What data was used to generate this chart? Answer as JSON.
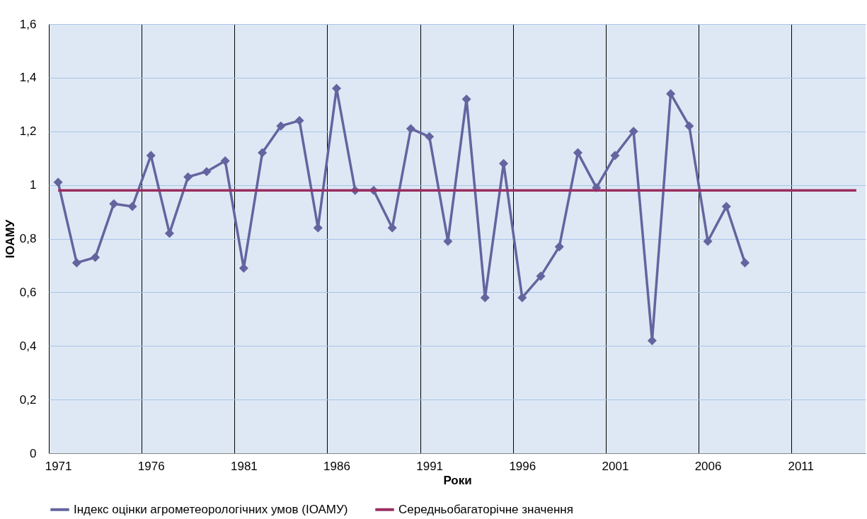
{
  "chart_data": {
    "type": "line",
    "xlabel": "Роки",
    "ylabel": "ІОАМУ",
    "categories": [
      "1971",
      null,
      null,
      null,
      null,
      "1976",
      null,
      null,
      null,
      null,
      "1981",
      null,
      null,
      null,
      null,
      "1986",
      null,
      null,
      null,
      null,
      "1991",
      null,
      null,
      null,
      null,
      "1996",
      null,
      null,
      null,
      null,
      "2001",
      null,
      null,
      null,
      null,
      "2006",
      null,
      null,
      null,
      null,
      "2011",
      null,
      null,
      null
    ],
    "series": [
      {
        "name": "Індекс оцінки агрометеорологічних умов (ІОАМУ)",
        "color": "#64649f",
        "marker": "diamond",
        "values": [
          1.01,
          0.71,
          0.73,
          0.93,
          0.92,
          1.11,
          0.82,
          1.03,
          1.05,
          1.09,
          0.69,
          1.12,
          1.22,
          1.24,
          0.84,
          1.36,
          0.98,
          0.98,
          0.84,
          1.21,
          1.18,
          0.79,
          1.32,
          0.58,
          1.08,
          0.58,
          0.66,
          0.77,
          1.12,
          0.99,
          1.11,
          1.2,
          0.42,
          1.34,
          1.22,
          0.79,
          0.92,
          0.71,
          null,
          null,
          null,
          null,
          null,
          null
        ]
      },
      {
        "name": "Середньобагаторічне значення",
        "color": "#9b2d61",
        "marker": "none",
        "values": [
          0.98,
          0.98,
          0.98,
          0.98,
          0.98,
          0.98,
          0.98,
          0.98,
          0.98,
          0.98,
          0.98,
          0.98,
          0.98,
          0.98,
          0.98,
          0.98,
          0.98,
          0.98,
          0.98,
          0.98,
          0.98,
          0.98,
          0.98,
          0.98,
          0.98,
          0.98,
          0.98,
          0.98,
          0.98,
          0.98,
          0.98,
          0.98,
          0.98,
          0.98,
          0.98,
          0.98,
          0.98,
          0.98,
          0.98,
          0.98,
          0.98,
          0.98,
          0.98,
          0.98
        ]
      }
    ],
    "ylim": [
      0,
      1.6
    ],
    "yticks": [
      0,
      {
        "value": 0.2,
        "label": "0,2"
      },
      {
        "value": 0.4,
        "label": "0,4"
      },
      {
        "value": 0.6,
        "label": "0,6"
      },
      {
        "value": 0.8,
        "label": "0,8"
      },
      1,
      {
        "value": 1.2,
        "label": "1,2"
      },
      {
        "value": 1.4,
        "label": "1,4"
      },
      {
        "value": 1.6,
        "label": "1,6"
      }
    ],
    "grid": true,
    "legend": "bottom",
    "line_style": "solid"
  }
}
